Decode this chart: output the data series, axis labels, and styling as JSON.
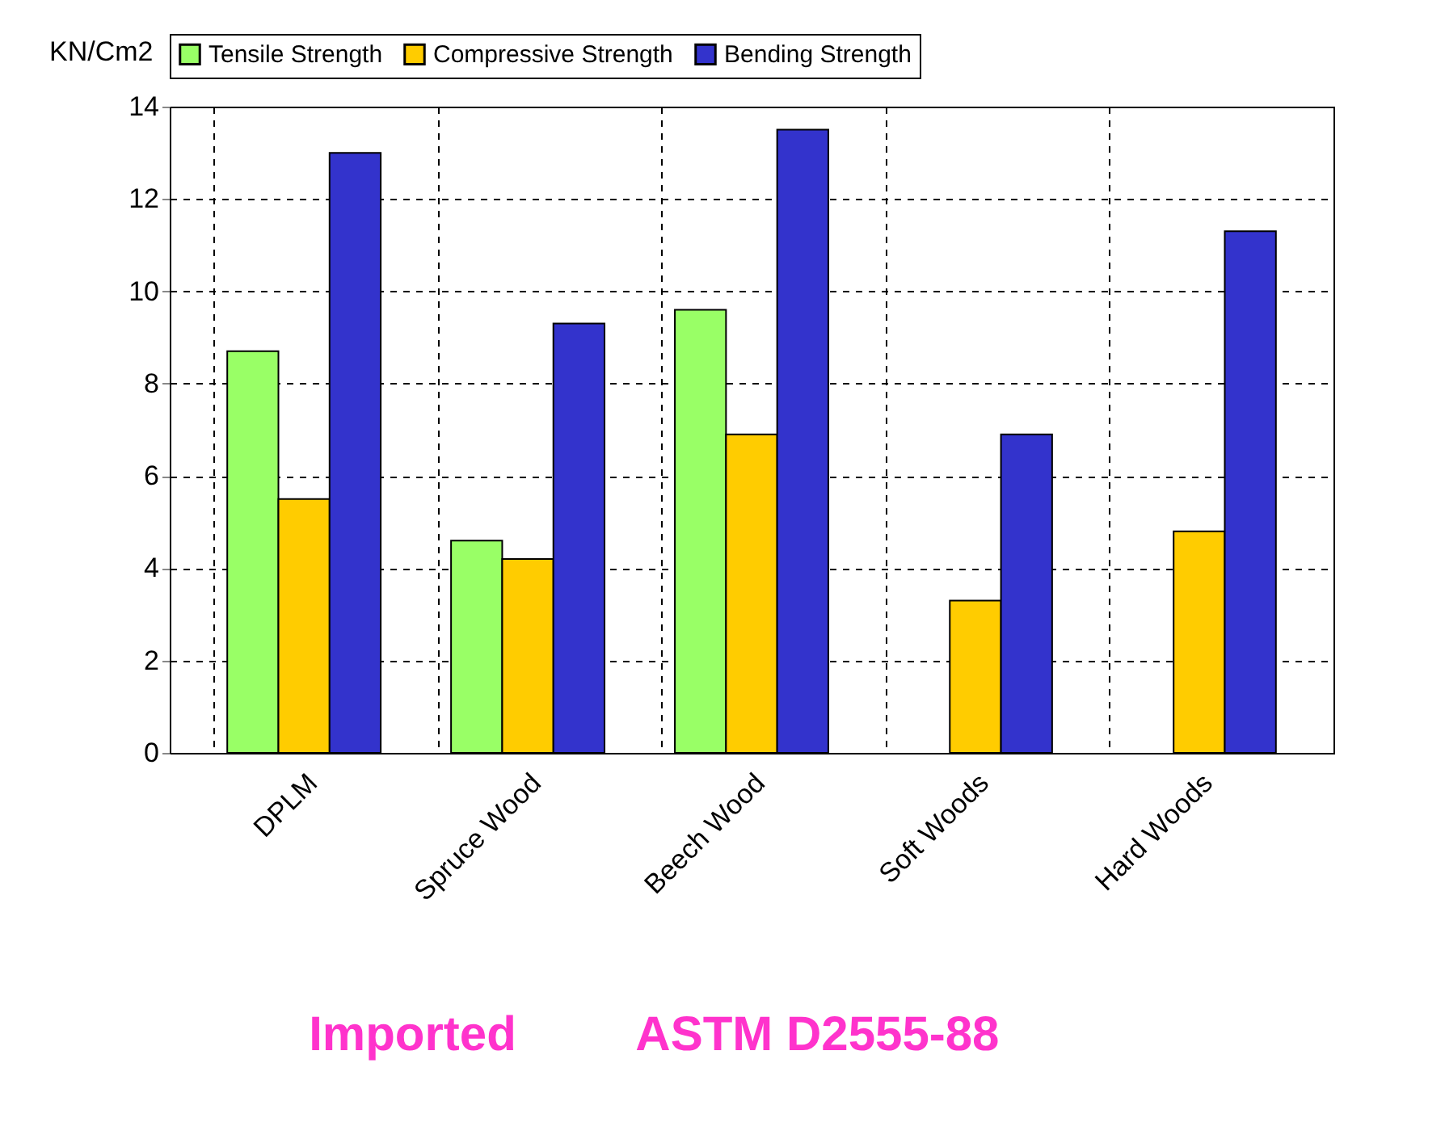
{
  "chart_data": {
    "type": "bar",
    "ylabel": "KN/Cm2",
    "categories": [
      "DPLM",
      "Spruce Wood",
      "Beech Wood",
      "Soft Woods",
      "Hard Woods"
    ],
    "series": [
      {
        "name": "Tensile Strength",
        "color": "#99ff66",
        "values": [
          8.7,
          4.6,
          9.6,
          null,
          null
        ]
      },
      {
        "name": "Compressive Strength",
        "color": "#ffcc00",
        "values": [
          5.5,
          4.2,
          6.9,
          3.3,
          4.8
        ]
      },
      {
        "name": "Bending Strength",
        "color": "#3333cc",
        "values": [
          13.0,
          9.3,
          13.5,
          6.9,
          11.3
        ]
      }
    ],
    "ylim": [
      0,
      14
    ],
    "yticks": [
      0,
      2,
      4,
      6,
      8,
      10,
      12,
      14
    ],
    "grid": true,
    "legend": "top",
    "annotations": [
      "Imported",
      "ASTM D2555-88"
    ]
  }
}
